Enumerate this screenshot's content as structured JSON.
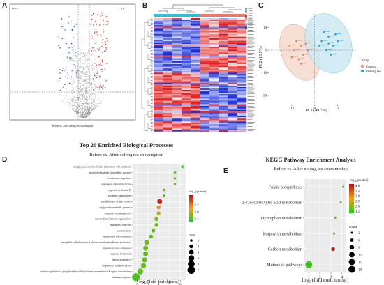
{
  "figure": {
    "panel_labels": [
      "A",
      "B",
      "C",
      "D",
      "E"
    ]
  },
  "chart_data": [
    {
      "panel": "A",
      "type": "scatter",
      "title": "",
      "xlabel": "Before vs. After oolong tea consumption",
      "ylabel": "",
      "annotations": {
        "top_left": "Down",
        "top_right": "Up"
      },
      "thresholds": {
        "vertical_lines": 2,
        "horizontal_lines": 1,
        "style": "dashed"
      },
      "colors": {
        "up": "#e53935",
        "down": "#1e4fd8",
        "ns": "#8a8a8a"
      }
    },
    {
      "panel": "B",
      "type": "heatmap",
      "title": "",
      "n_columns": 10,
      "n_rows": 80,
      "column_dendrogram": true,
      "row_dendrogram": true,
      "colorscale": [
        "#1b2fd9",
        "#ffffff",
        "#e21b1b"
      ],
      "group_bar": [
        "#2bbfd6",
        "#2bbfd6",
        "#2bbfd6",
        "#2bbfd6",
        "#2bbfd6",
        "#e97867",
        "#e97867",
        "#e97867",
        "#e97867",
        "#e97867"
      ]
    },
    {
      "panel": "C",
      "type": "scatter",
      "title": "",
      "xlabel": "PC1 (49.7%)",
      "ylabel": "PC2 (15.9%)",
      "xticks": [
        "-10",
        "0",
        "10"
      ],
      "yticks": [
        "10",
        "0",
        "-10",
        "-20"
      ],
      "xlim": [
        -20,
        18
      ],
      "ylim": [
        -24,
        16
      ],
      "legend": {
        "title": "Group",
        "placement": "right"
      },
      "series": [
        {
          "name": "Control",
          "color": "#d98a6a",
          "ellipse_fill": "#f6d7cc",
          "points": [
            [
              -8,
              4
            ],
            [
              -6,
              2
            ],
            [
              -9,
              0
            ],
            [
              -5,
              -2
            ],
            [
              -7,
              -4
            ],
            [
              -10,
              -3
            ],
            [
              -4,
              3
            ],
            [
              -6,
              -6
            ],
            [
              -3,
              0
            ],
            [
              -11,
              2
            ]
          ]
        },
        {
          "name": "Oolong tea",
          "color": "#2aa4c8",
          "ellipse_fill": "#c9e8f2",
          "points": [
            [
              3,
              4
            ],
            [
              6,
              6
            ],
            [
              8,
              2
            ],
            [
              5,
              0
            ],
            [
              10,
              4
            ],
            [
              4,
              8
            ],
            [
              7,
              -2
            ],
            [
              9,
              7
            ],
            [
              2,
              2
            ],
            [
              6,
              3
            ]
          ]
        }
      ]
    },
    {
      "panel": "D",
      "type": "scatter",
      "title": "Top 20 Enriched Biological Processes",
      "subtitle": "Before vs. After oolong tea consumption",
      "xlabel": "log2 (fold enrichment)",
      "xlabel_base": "log",
      "xlabel_sub": "2",
      "xlabel_rest": " (fold enrichment)",
      "ylabel": "",
      "xlim": [
        1.6,
        6.5
      ],
      "xticks": [
        "2",
        "3",
        "4",
        "5",
        "6"
      ],
      "colorbar": {
        "title_prefix": "−log",
        "title_sub": "10",
        "title_suffix": "(pvalue)",
        "ticks": [
          "2.5",
          "2.0",
          "1.5"
        ],
        "range": [
          1.3,
          3.2
        ],
        "colors": [
          "#22c71f",
          "#f0a020",
          "#b01818"
        ]
      },
      "size_legend": {
        "title": "count",
        "values": [
          2,
          3,
          4,
          5,
          6,
          7
        ]
      },
      "categories": [
        "biological process involved in interaction with symbiont",
        "tetrahydrobiopterin biosynthetic process",
        "keratinocyte migration",
        "response to chloramine toxin",
        "response to vitamin E",
        "axoneme organization",
        "establishment of skin barrier",
        "triglyceride metabolic process",
        "response to cadmium ion",
        "intermediate filament organization",
        "response to lead ion",
        "keratinization",
        "keratinocyte differentiation",
        "hemophilic cell adhesion via plasma membrane adhesion molecules",
        "response to toxic substance",
        "response to nutrient",
        "female pregnancy",
        "response to oxidative stress",
        "positive regulation of phosphatidylinositol 3-kinase/protein kinase B signal transduction",
        "immune response"
      ],
      "x": [
        6.2,
        5.5,
        5.5,
        5.5,
        4.5,
        4.5,
        4.1,
        4.0,
        4.0,
        3.8,
        3.8,
        3.5,
        3.3,
        2.9,
        2.8,
        2.8,
        2.7,
        2.6,
        2.3,
        1.9
      ],
      "count": [
        2,
        2,
        2,
        2,
        2,
        2,
        4,
        3,
        3,
        3,
        3,
        3,
        3,
        4,
        4,
        4,
        4,
        4,
        5,
        7
      ],
      "neglog10_pvalue": [
        1.4,
        1.5,
        1.5,
        1.5,
        1.6,
        1.6,
        3.1,
        2.4,
        2.0,
        1.7,
        1.7,
        1.6,
        1.6,
        1.7,
        1.6,
        1.6,
        1.6,
        1.6,
        1.6,
        1.5
      ]
    },
    {
      "panel": "E",
      "type": "scatter",
      "title": "KEGG Pathway Enrichment Analysis",
      "subtitle": "Before vs. After oolong tea consumption",
      "xlabel": "log2 (fold enrichment)",
      "xlabel_base": "log",
      "xlabel_sub": "2",
      "xlabel_rest": " (fold enrichment)",
      "ylabel": "",
      "xlim": [
        0.6,
        4.4
      ],
      "xticks": [
        "1",
        "2",
        "3",
        "4"
      ],
      "colorbar": {
        "title_prefix": "−log",
        "title_sub": "10",
        "title_suffix": "(pvalue)",
        "ticks": [
          "4.0",
          "3.5",
          "3.0",
          "2.5",
          "2.0",
          "1.5"
        ],
        "range": [
          1.3,
          4.2
        ],
        "colors": [
          "#22c71f",
          "#f0a020",
          "#b01818"
        ]
      },
      "size_legend": {
        "title": "count",
        "values": [
          3,
          6,
          9,
          12,
          15,
          18
        ]
      },
      "categories": [
        "Folate biosynthesis",
        "2−Oxocarboxylic acid metabolism",
        "Tryptophan metabolism",
        "Porphyrin metabolism",
        "Carbon metabolism",
        "Metabolic pathways"
      ],
      "x": [
        4.1,
        3.9,
        3.4,
        3.3,
        3.2,
        1.0
      ],
      "count": [
        3,
        3,
        3,
        3,
        7,
        18
      ],
      "neglog10_pvalue": [
        1.6,
        1.7,
        1.6,
        1.6,
        4.0,
        1.5
      ]
    }
  ]
}
